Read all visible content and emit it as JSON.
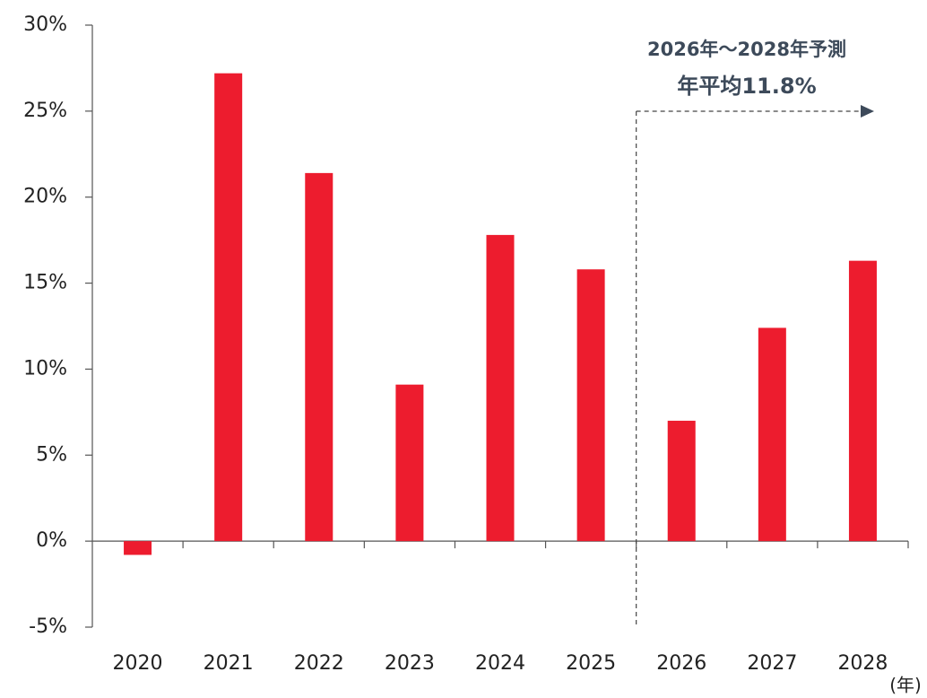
{
  "chart_data": {
    "type": "bar",
    "categories": [
      "2020",
      "2021",
      "2022",
      "2023",
      "2024",
      "2025",
      "2026",
      "2027",
      "2028"
    ],
    "values": [
      -0.8,
      27.2,
      21.4,
      9.1,
      17.8,
      15.8,
      7.0,
      12.4,
      16.3
    ],
    "color": "#ed1c2e",
    "ylim": [
      -5,
      30
    ],
    "yticks": [
      {
        "value": -5,
        "label": "-5%"
      },
      {
        "value": 0,
        "label": "0%"
      },
      {
        "value": 5,
        "label": "5%"
      },
      {
        "value": 10,
        "label": "10%"
      },
      {
        "value": 15,
        "label": "15%"
      },
      {
        "value": 20,
        "label": "20%"
      },
      {
        "value": 25,
        "label": "25%"
      },
      {
        "value": 30,
        "label": "30%"
      }
    ],
    "grid": false,
    "xlabel": "(年)",
    "annotations": [
      "2026年～2028年予測",
      "年平均11.8%"
    ]
  }
}
